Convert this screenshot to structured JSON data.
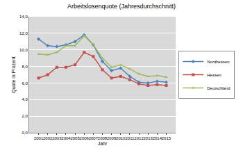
{
  "chart_data": {
    "type": "line",
    "title": "Arbeitslosenquote (Jahresdurchschnitt)",
    "x_label": "Jahr",
    "y_label": "Quote in Prozent",
    "categories": [
      "2001",
      "2002",
      "2003",
      "2004",
      "2005",
      "2006",
      "2007",
      "2008",
      "2009",
      "2010",
      "2011",
      "2012",
      "2013",
      "2014",
      "2015"
    ],
    "series": [
      {
        "name": "Nordhessen",
        "color": "#4f81bd",
        "marker": "diamond",
        "line_style": "solid",
        "values": [
          11.3,
          10.5,
          10.4,
          10.6,
          11.0,
          11.8,
          10.6,
          8.6,
          7.5,
          7.8,
          6.8,
          6.1,
          6.0,
          6.2,
          6.1
        ]
      },
      {
        "name": "Hessen",
        "color": "#c0504d",
        "marker": "square",
        "line_style": "solid",
        "values": [
          6.6,
          7.0,
          7.9,
          7.9,
          8.2,
          9.7,
          9.2,
          7.6,
          6.6,
          6.8,
          6.4,
          5.9,
          5.7,
          5.8,
          5.7
        ]
      },
      {
        "name": "Deutschland",
        "color": "#9bbb59",
        "marker": "triangle",
        "line_style": "solid",
        "values": [
          9.5,
          9.4,
          9.7,
          10.5,
          10.5,
          11.7,
          10.6,
          9.0,
          7.9,
          8.2,
          7.7,
          7.1,
          6.8,
          6.9,
          6.7
        ]
      }
    ],
    "ylim": [
      0,
      14
    ],
    "yticks": [
      {
        "value": 0,
        "label": "0,0"
      },
      {
        "value": 2,
        "label": "2,0"
      },
      {
        "value": 4,
        "label": "4,0"
      },
      {
        "value": 6,
        "label": "6,0"
      },
      {
        "value": 8,
        "label": "8,0"
      },
      {
        "value": 10,
        "label": "10,0"
      },
      {
        "value": 12,
        "label": "12,0"
      },
      {
        "value": 14,
        "label": "14,0"
      }
    ],
    "grid": true,
    "legend": "right"
  }
}
